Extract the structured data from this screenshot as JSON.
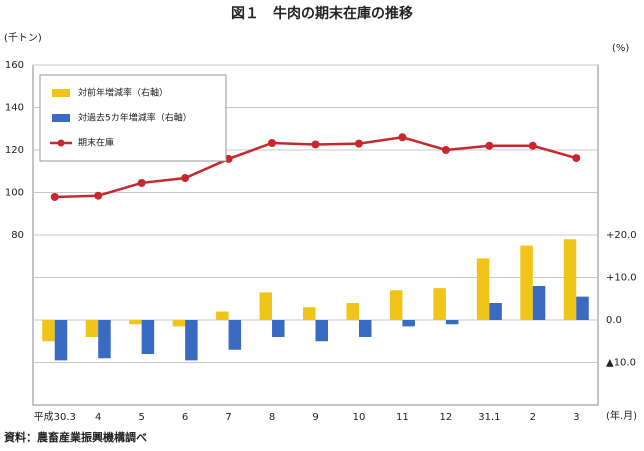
{
  "chart_data": {
    "type": "bar-line",
    "title": "図１　牛肉の期末在庫の推移",
    "y_label": "(千トン)",
    "y2_label": "(%)",
    "x_label": "(年.月)",
    "source": "資料：農畜産業振興機構調べ",
    "categories": [
      "平成30.3",
      "4",
      "5",
      "6",
      "7",
      "8",
      "9",
      "10",
      "11",
      "12",
      "31.1",
      "2",
      "3"
    ],
    "series": [
      {
        "name": "対前年増減率（右軸）",
        "type": "bar",
        "axis": "y2",
        "color": "#f0c419",
        "values": [
          -5,
          -4,
          -1,
          -1.5,
          2,
          6.5,
          3,
          4,
          7,
          7.5,
          14.5,
          17.5,
          19
        ]
      },
      {
        "name": "対過去5カ年増減率（右軸）",
        "type": "bar",
        "axis": "y2",
        "color": "#3a6bc2",
        "values": [
          -9.5,
          -9,
          -8,
          -9.5,
          -7,
          -4,
          -5,
          -4,
          -1.5,
          -1,
          4,
          8,
          5.5
        ]
      },
      {
        "name": "期末在庫",
        "type": "line",
        "color": "#c8282d",
        "values": [
          97.9,
          98.5,
          104.5,
          106.8,
          115.8,
          123.3,
          122.6,
          123,
          126,
          120,
          122,
          122,
          116.2
        ]
      }
    ],
    "ylim": [
      0,
      160
    ],
    "yticks": [
      80,
      100,
      120,
      140,
      160
    ],
    "y2lim": [
      -20,
      60
    ],
    "y2ticks": [
      {
        "value": -10,
        "label": "▲10.0"
      },
      {
        "value": 0,
        "label": "0.0"
      },
      {
        "value": 10,
        "label": "+10.0"
      },
      {
        "value": 20,
        "label": "+20.0"
      }
    ],
    "grid": true,
    "legend": "upper left"
  }
}
